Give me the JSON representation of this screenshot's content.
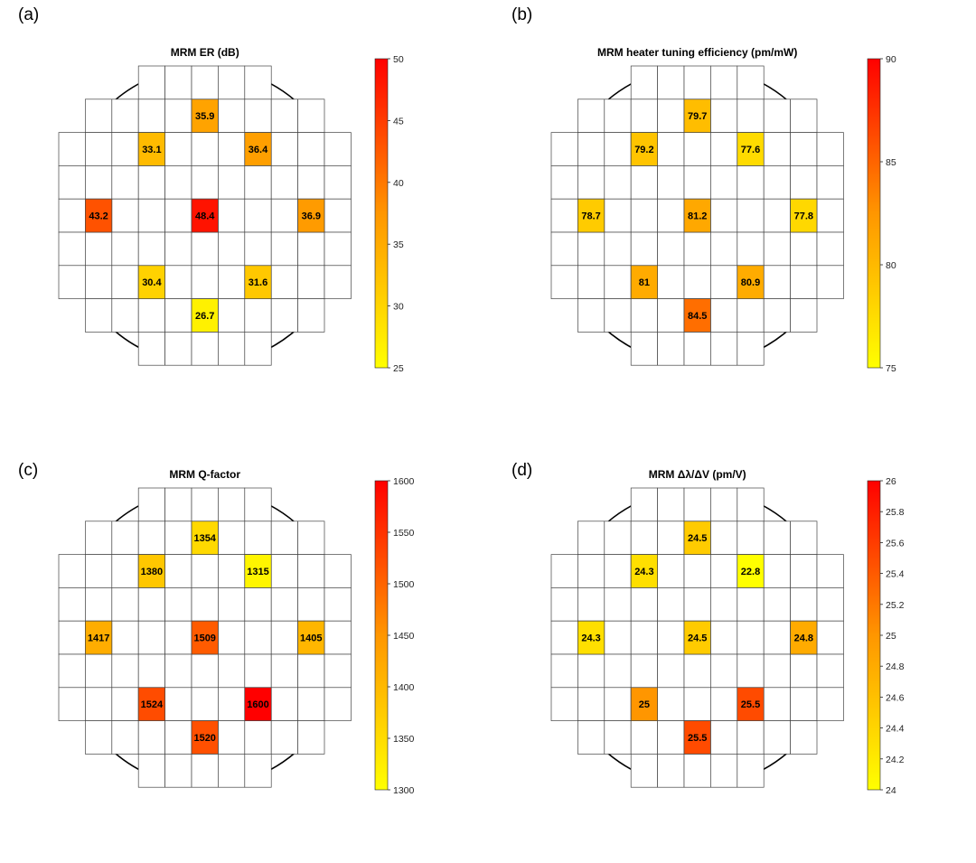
{
  "panels": [
    {
      "label": "(a)",
      "title": "MRM ER (dB)"
    },
    {
      "label": "(b)",
      "title": "MRM heater tuning efficiency (pm/mW)"
    },
    {
      "label": "(c)",
      "title": "MRM Q-factor"
    },
    {
      "label": "(d)",
      "title": "MRM Δλ/ΔV (pm/V)"
    }
  ],
  "chart_data": [
    {
      "type": "heatmap",
      "title": "MRM ER (dB)",
      "grid_rows": 9,
      "grid_cols": 11,
      "cells": [
        {
          "row": 1,
          "col": 5,
          "value": 35.9,
          "label": "35.9"
        },
        {
          "row": 2,
          "col": 3,
          "value": 33.1,
          "label": "33.1"
        },
        {
          "row": 2,
          "col": 7,
          "value": 36.4,
          "label": "36.4"
        },
        {
          "row": 4,
          "col": 1,
          "value": 43.2,
          "label": "43.2"
        },
        {
          "row": 4,
          "col": 5,
          "value": 48.4,
          "label": "48.4"
        },
        {
          "row": 4,
          "col": 9,
          "value": 36.9,
          "label": "36.9"
        },
        {
          "row": 6,
          "col": 3,
          "value": 30.4,
          "label": "30.4"
        },
        {
          "row": 6,
          "col": 7,
          "value": 31.6,
          "label": "31.6"
        },
        {
          "row": 7,
          "col": 5,
          "value": 26.7,
          "label": "26.7"
        }
      ],
      "colorbar": {
        "min": 25,
        "max": 50,
        "ticks": [
          25,
          30,
          35,
          40,
          45,
          50
        ],
        "tick_labels": [
          "25",
          "30",
          "35",
          "40",
          "45",
          "50"
        ]
      }
    },
    {
      "type": "heatmap",
      "title": "MRM heater tuning efficiency (pm/mW)",
      "grid_rows": 9,
      "grid_cols": 11,
      "cells": [
        {
          "row": 1,
          "col": 5,
          "value": 79.7,
          "label": "79.7"
        },
        {
          "row": 2,
          "col": 3,
          "value": 79.2,
          "label": "79.2"
        },
        {
          "row": 2,
          "col": 7,
          "value": 77.6,
          "label": "77.6"
        },
        {
          "row": 4,
          "col": 1,
          "value": 78.7,
          "label": "78.7"
        },
        {
          "row": 4,
          "col": 5,
          "value": 81.2,
          "label": "81.2"
        },
        {
          "row": 4,
          "col": 9,
          "value": 77.8,
          "label": "77.8"
        },
        {
          "row": 6,
          "col": 3,
          "value": 81,
          "label": "81"
        },
        {
          "row": 6,
          "col": 7,
          "value": 80.9,
          "label": "80.9"
        },
        {
          "row": 7,
          "col": 5,
          "value": 84.5,
          "label": "84.5"
        }
      ],
      "colorbar": {
        "min": 75,
        "max": 90,
        "ticks": [
          75,
          80,
          85,
          90
        ],
        "tick_labels": [
          "75",
          "80",
          "85",
          "90"
        ]
      }
    },
    {
      "type": "heatmap",
      "title": "MRM Q-factor",
      "grid_rows": 9,
      "grid_cols": 11,
      "cells": [
        {
          "row": 1,
          "col": 5,
          "value": 1354,
          "label": "1354"
        },
        {
          "row": 2,
          "col": 3,
          "value": 1380,
          "label": "1380"
        },
        {
          "row": 2,
          "col": 7,
          "value": 1315,
          "label": "1315"
        },
        {
          "row": 4,
          "col": 1,
          "value": 1417,
          "label": "1417"
        },
        {
          "row": 4,
          "col": 5,
          "value": 1509,
          "label": "1509"
        },
        {
          "row": 4,
          "col": 9,
          "value": 1405,
          "label": "1405"
        },
        {
          "row": 6,
          "col": 3,
          "value": 1524,
          "label": "1524"
        },
        {
          "row": 6,
          "col": 7,
          "value": 1600,
          "label": "1600"
        },
        {
          "row": 7,
          "col": 5,
          "value": 1520,
          "label": "1520"
        }
      ],
      "colorbar": {
        "min": 1300,
        "max": 1600,
        "ticks": [
          1300,
          1350,
          1400,
          1450,
          1500,
          1550,
          1600
        ],
        "tick_labels": [
          "1300",
          "1350",
          "1400",
          "1450",
          "1500",
          "1550",
          "1600"
        ]
      }
    },
    {
      "type": "heatmap",
      "title": "MRM Δλ/ΔV (pm/V)",
      "grid_rows": 9,
      "grid_cols": 11,
      "cells": [
        {
          "row": 1,
          "col": 5,
          "value": 24.5,
          "label": "24.5"
        },
        {
          "row": 2,
          "col": 3,
          "value": 24.3,
          "label": "24.3"
        },
        {
          "row": 2,
          "col": 7,
          "value": 22.8,
          "label": "22.8"
        },
        {
          "row": 4,
          "col": 1,
          "value": 24.3,
          "label": "24.3"
        },
        {
          "row": 4,
          "col": 5,
          "value": 24.5,
          "label": "24.5"
        },
        {
          "row": 4,
          "col": 9,
          "value": 24.8,
          "label": "24.8"
        },
        {
          "row": 6,
          "col": 3,
          "value": 25,
          "label": "25"
        },
        {
          "row": 6,
          "col": 7,
          "value": 25.5,
          "label": "25.5"
        },
        {
          "row": 7,
          "col": 5,
          "value": 25.5,
          "label": "25.5"
        }
      ],
      "colorbar": {
        "min": 24,
        "max": 26,
        "ticks": [
          24,
          24.2,
          24.4,
          24.6,
          24.8,
          25,
          25.2,
          25.4,
          25.6,
          25.8,
          26
        ],
        "tick_labels": [
          "24",
          "24.2",
          "24.4",
          "24.6",
          "24.8",
          "25",
          "25.2",
          "25.4",
          "25.6",
          "25.8",
          "26"
        ]
      }
    }
  ]
}
